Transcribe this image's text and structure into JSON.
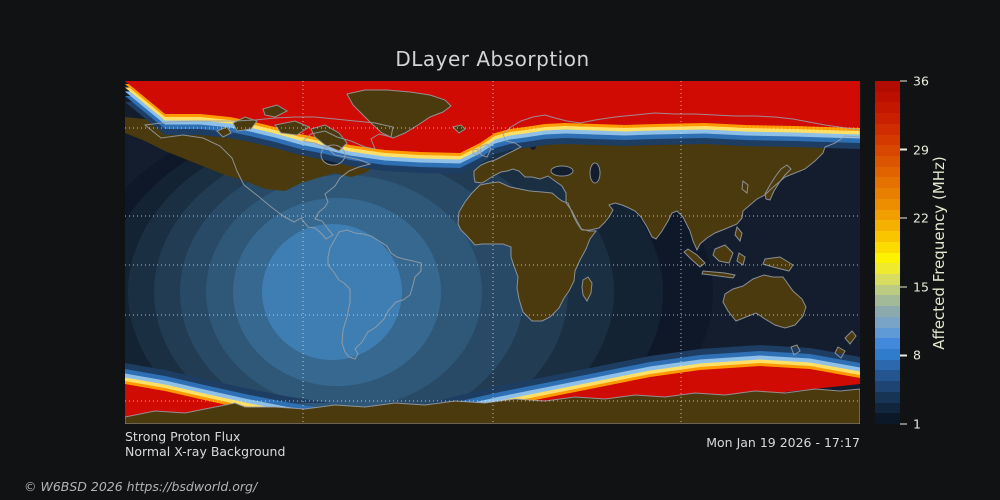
{
  "title": "DLayer Absorption",
  "status": {
    "line1": "Strong Proton Flux",
    "line2": "Normal X-ray Background"
  },
  "timestamp": "Mon Jan 19 2026 - 17:17",
  "copyright": "© W6BSD 2026 https://bsdworld.org/",
  "colorbar": {
    "label": "Affected Frequency (MHz)",
    "vmin": 1,
    "vmax": 36,
    "ticks": [
      36,
      29,
      22,
      15,
      8,
      1
    ],
    "colors": [
      "#b20c00",
      "#bb1000",
      "#c31700",
      "#c92100",
      "#cf2d00",
      "#d43a00",
      "#d84700",
      "#dc5500",
      "#e06300",
      "#e47100",
      "#e87f00",
      "#ec8e00",
      "#f09e00",
      "#f5b000",
      "#f9c400",
      "#fcdc00",
      "#fdf200",
      "#eeea2e",
      "#d8dd60",
      "#bccb82",
      "#a3ba98",
      "#8caaae",
      "#79a4c6",
      "#5f9ad7",
      "#4289dd",
      "#2f7ccd",
      "#2b68ae",
      "#245590",
      "#1d4472",
      "#173455",
      "#11253c",
      "#0b1828"
    ]
  },
  "colors": {
    "background": "#111214",
    "ocean": "#141d2e",
    "land": "#4a3a0e",
    "coastline": "#9aa0a8",
    "polar_cap_red": "#cf0b04",
    "grid": "#e8e8e8",
    "title_text": "#d4d4d4"
  },
  "map": {
    "projection": "equirectangular",
    "day_rings": [
      "#0e1828",
      "#142334",
      "#1a2f42",
      "#213c53",
      "#284a66",
      "#2f5878",
      "#376890",
      "#3f7eb2"
    ],
    "cap_stripes": [
      "#1d3d62",
      "#2f6fb4",
      "#8fc0e8",
      "#ffe066",
      "#ff9a00"
    ]
  }
}
